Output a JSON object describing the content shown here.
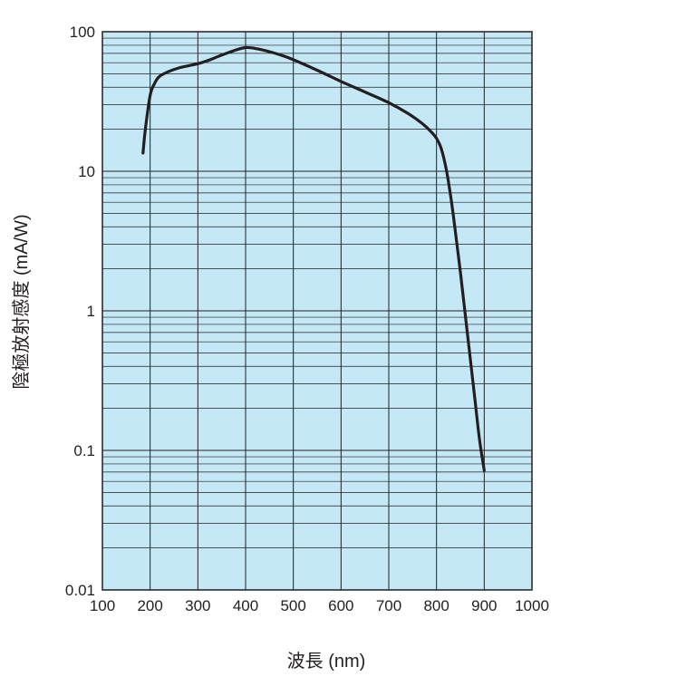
{
  "chart_data": {
    "type": "line",
    "title": "",
    "xlabel": "波長 (nm)",
    "ylabel": "陰極放射感度 (mA/W)",
    "xlim": [
      100,
      1000
    ],
    "ylim": [
      0.01,
      100
    ],
    "y_scale": "log",
    "grid": true,
    "x_ticks": [
      "100",
      "200",
      "300",
      "400",
      "500",
      "600",
      "700",
      "800",
      "900",
      "1000"
    ],
    "y_ticks": [
      "100",
      "10",
      "1",
      "0.1",
      "0.01"
    ],
    "plot_background": "#c5e8f7",
    "line_color": "#231f20",
    "series": [
      {
        "x": [
          185,
          190,
          200,
          210,
          220,
          240,
          260,
          280,
          300,
          320,
          350,
          380,
          400,
          420,
          450,
          480,
          500,
          550,
          600,
          650,
          700,
          740,
          770,
          790,
          800,
          810,
          820,
          830,
          840,
          850,
          860,
          870,
          880,
          890,
          900
        ],
        "y": [
          13.5,
          20,
          35,
          43,
          48,
          52,
          55,
          57,
          59,
          62,
          68,
          74,
          77,
          76,
          72,
          67,
          63,
          53,
          44,
          37,
          31,
          26,
          22,
          19,
          17.2,
          14.5,
          10.5,
          6.5,
          3.6,
          1.9,
          0.95,
          0.48,
          0.24,
          0.12,
          0.072
        ]
      }
    ]
  }
}
